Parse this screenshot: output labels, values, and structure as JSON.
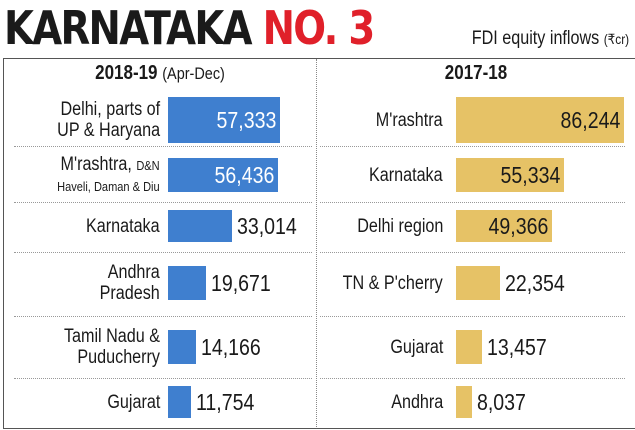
{
  "header": {
    "title_black": "KARNATAKA",
    "title_red": "NO. 3",
    "subtitle": "FDI equity inflows",
    "unit": "(₹cr)"
  },
  "colors": {
    "left_bar": "#3f7fcf",
    "right_bar": "#e6c266",
    "title_red": "#e0202a"
  },
  "chart_data": [
    {
      "type": "bar",
      "orientation": "horizontal",
      "title": "2018-19",
      "title_note": "(Apr-Dec)",
      "xlim": [
        0,
        90000
      ],
      "categories": [
        [
          "Delhi, parts of",
          "UP & Haryana"
        ],
        [
          "M'rashtra, ",
          "D&N",
          "Haveli, Daman & Diu"
        ],
        [
          "Karnataka"
        ],
        [
          "Andhra",
          "Pradesh"
        ],
        [
          "Tamil Nadu &",
          "Puducherry"
        ],
        [
          "Gujarat"
        ]
      ],
      "values": [
        57333,
        56436,
        33014,
        19671,
        14166,
        11754
      ],
      "value_labels": [
        "57,333",
        "56,436",
        "33,014",
        "19,671",
        "14,166",
        "11,754"
      ]
    },
    {
      "type": "bar",
      "orientation": "horizontal",
      "title": "2017-18",
      "title_note": "",
      "xlim": [
        0,
        90000
      ],
      "categories": [
        [
          "M'rashtra"
        ],
        [
          "Karnataka"
        ],
        [
          "Delhi region"
        ],
        [
          "TN & P'cherry"
        ],
        [
          "Gujarat"
        ],
        [
          "Andhra"
        ]
      ],
      "values": [
        86244,
        55334,
        49366,
        22354,
        13457,
        8037
      ],
      "value_labels": [
        "86,244",
        "55,334",
        "49,366",
        "22,354",
        "13,457",
        "8,037"
      ]
    }
  ]
}
